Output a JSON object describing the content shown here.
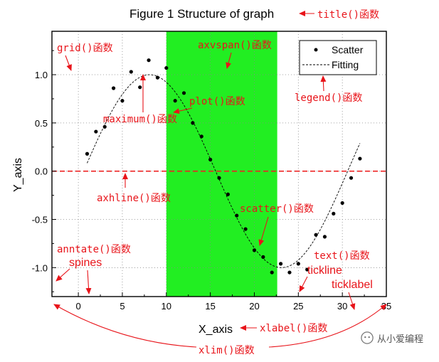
{
  "colors": {
    "annotation": "#e8141a",
    "span": "#22ee22",
    "hline": "#ee2222",
    "points": "#000000",
    "grid": "#888888"
  },
  "chart_data": {
    "type": "scatter",
    "title": "Figure 1 Structure of graph",
    "xlabel": "X_axis",
    "ylabel": "Y_axis",
    "xlim": [
      -3,
      35
    ],
    "ylim": [
      -1.3,
      1.45
    ],
    "xticks": [
      0,
      5,
      10,
      15,
      20,
      25,
      30,
      35
    ],
    "yticks": [
      1.0,
      0.5,
      0.0,
      -0.5,
      -1.0
    ],
    "xtick_labels": [
      "0",
      "5",
      "10",
      "15",
      "20",
      "25",
      "30",
      "35"
    ],
    "ytick_labels": [
      "1.0",
      "0.5",
      "0.0",
      "-0.5",
      "-1.0"
    ],
    "grid": true,
    "legend": {
      "placement": "top-right",
      "entries": [
        "Scatter",
        "Fitting"
      ]
    },
    "axvspan": [
      10,
      22.6
    ],
    "axhline": 0.0,
    "scatter": {
      "name": "Scatter",
      "x": [
        1,
        2,
        3,
        4,
        5,
        6,
        7,
        8,
        9,
        10,
        11,
        12,
        13,
        14,
        15,
        16,
        17,
        18,
        19,
        20,
        21,
        22,
        23,
        24,
        25,
        26,
        27,
        28,
        29,
        30,
        31,
        32
      ],
      "y": [
        0.18,
        0.41,
        0.46,
        0.86,
        0.73,
        1.03,
        0.87,
        1.15,
        0.97,
        1.07,
        0.73,
        0.81,
        0.5,
        0.36,
        0.12,
        -0.07,
        -0.24,
        -0.46,
        -0.6,
        -0.82,
        -0.89,
        -1.05,
        -0.96,
        -1.05,
        -0.96,
        -1.02,
        -0.66,
        -0.68,
        -0.44,
        -0.33,
        -0.07,
        0.13
      ]
    },
    "fit": {
      "name": "Fitting",
      "amplitude": 1.0,
      "period": 30,
      "x0": 0.6
    },
    "annotations": [
      {
        "text": "title()函数"
      },
      {
        "text": "grid()函数"
      },
      {
        "text": "axvspan()函数"
      },
      {
        "text": "legend()函数"
      },
      {
        "text": "plot()函数"
      },
      {
        "text": "maximum()函数"
      },
      {
        "text": "axhline()函数"
      },
      {
        "text": "scatter()函数"
      },
      {
        "text": "anntate()函数"
      },
      {
        "text": "spines"
      },
      {
        "text": "text()函数"
      },
      {
        "text": "tickline"
      },
      {
        "text": "ticklabel"
      },
      {
        "text": "xlabel()函数"
      },
      {
        "text": "xlim()函数"
      }
    ]
  },
  "watermark": {
    "text": "从小爱编程"
  }
}
